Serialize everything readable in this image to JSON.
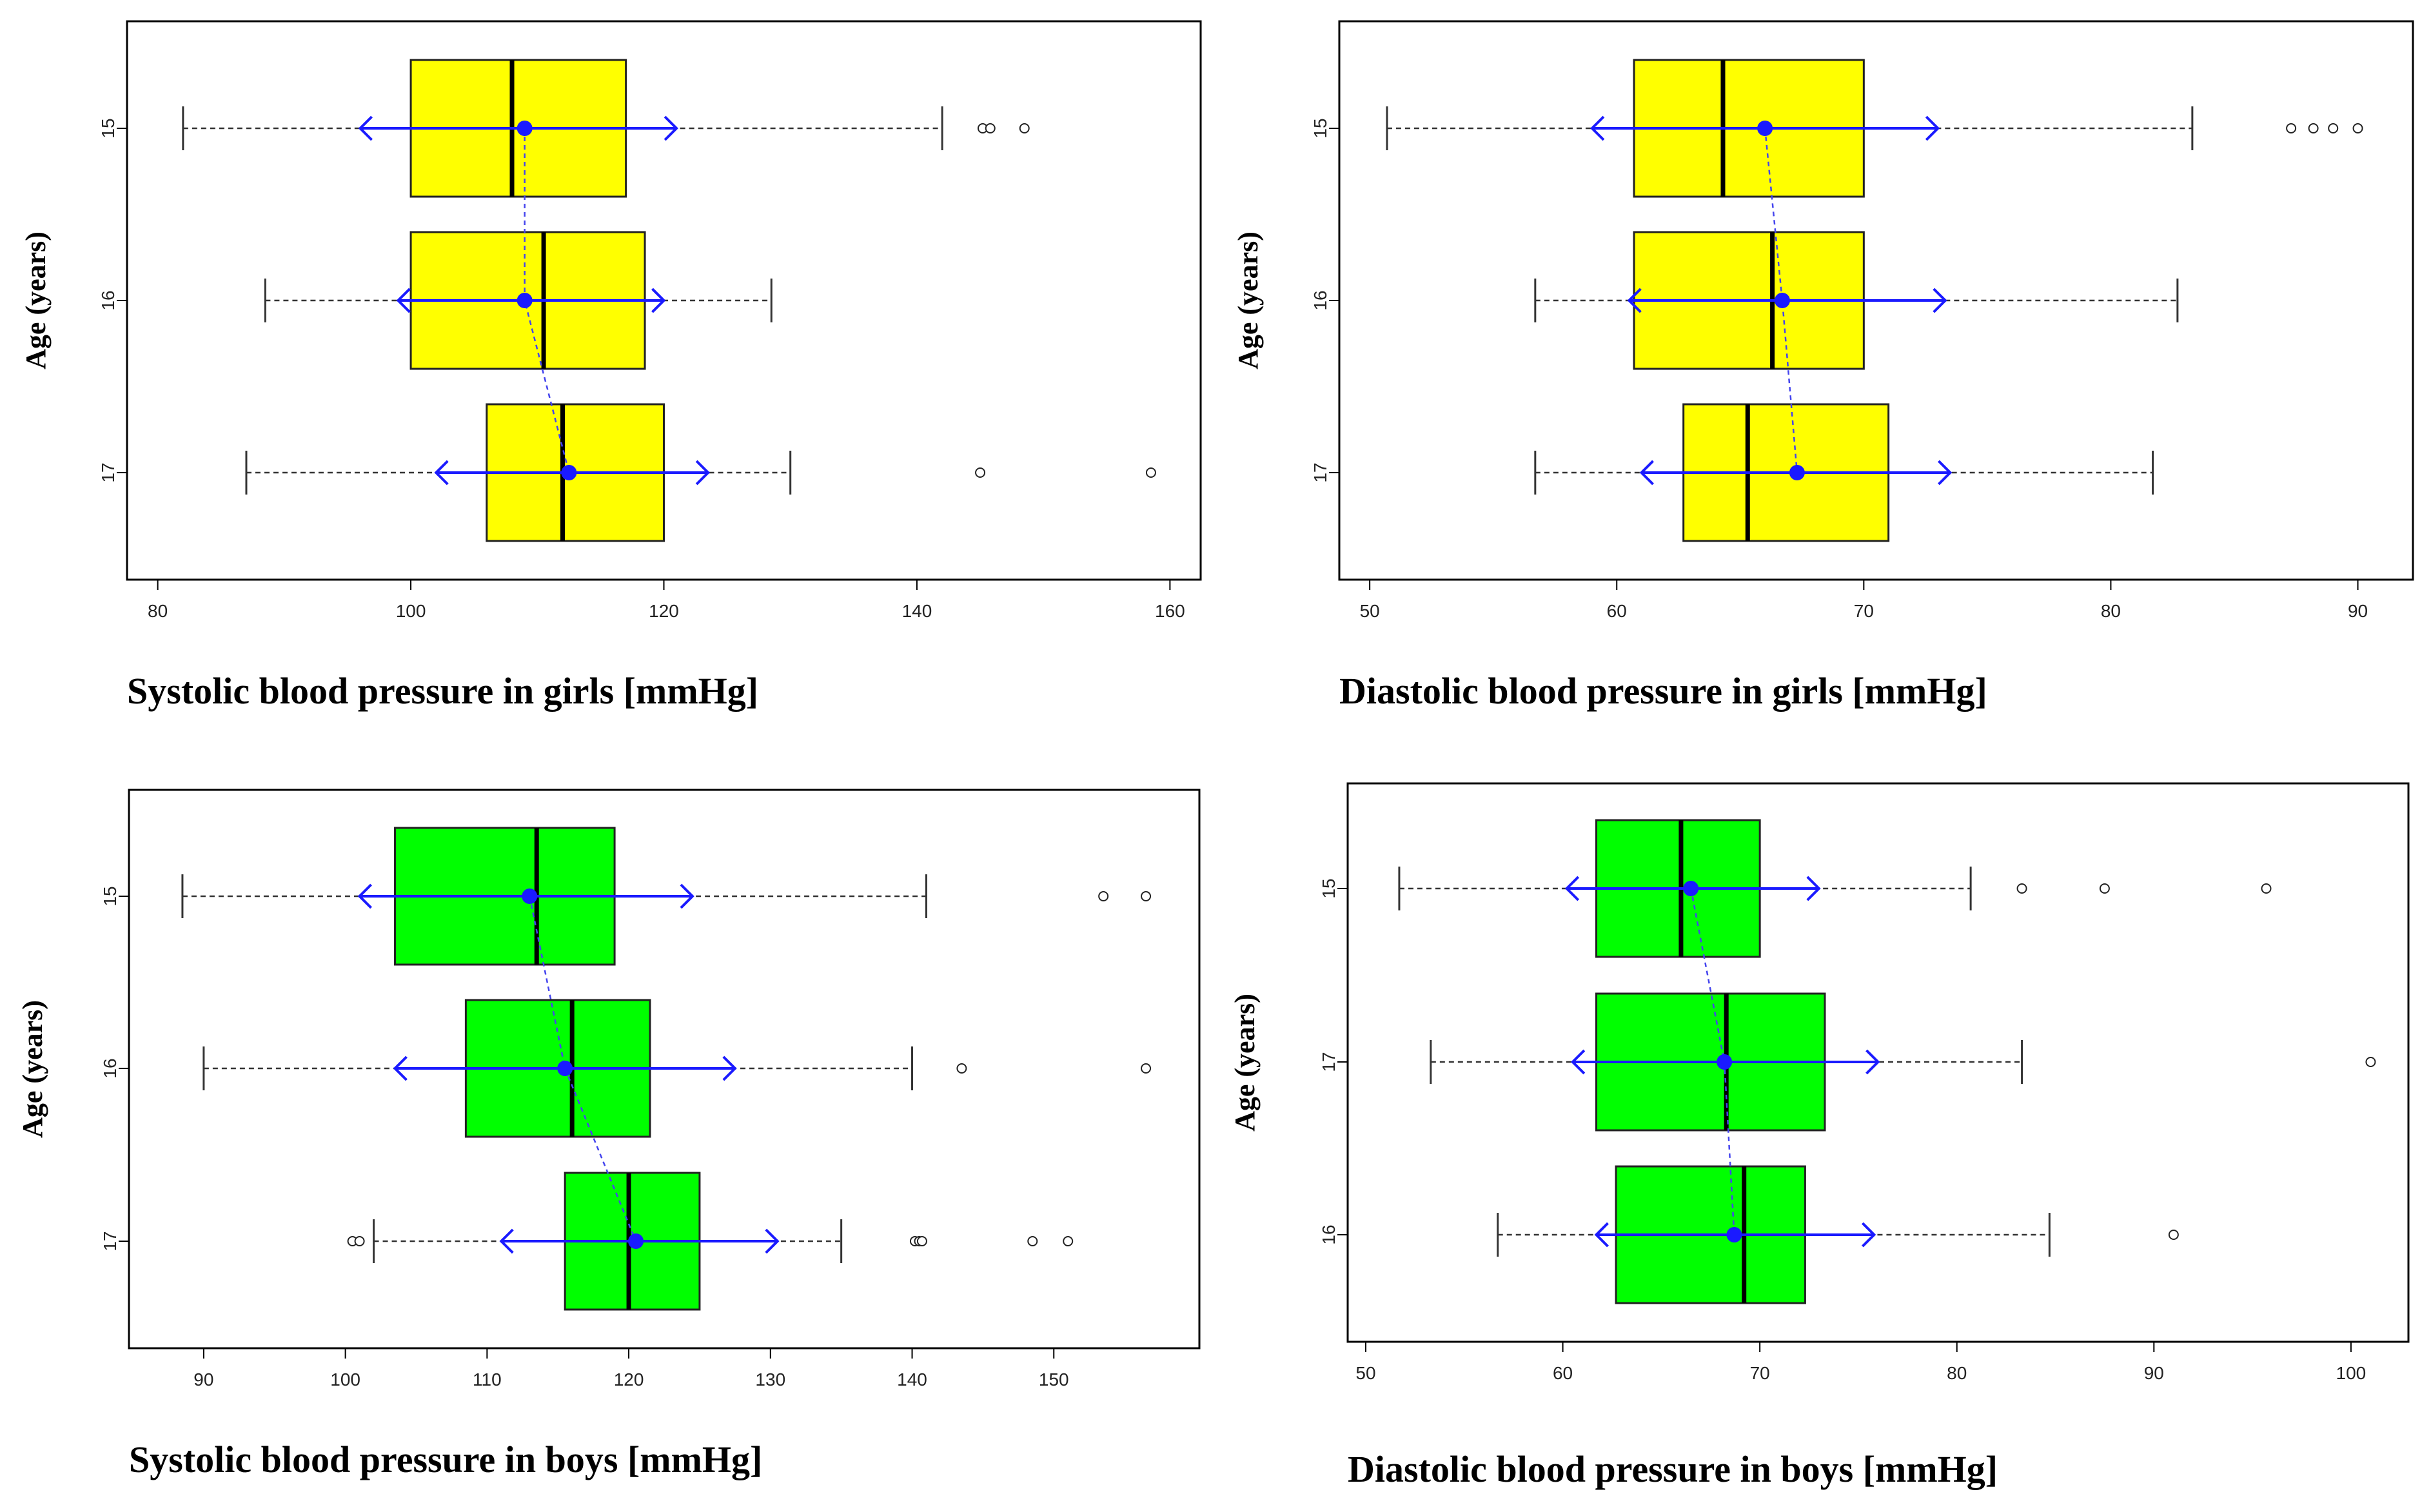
{
  "chart_data": [
    {
      "type": "boxplot",
      "title": "",
      "xlabel": "Systolic blood pressure in girls [mmHg]",
      "ylabel": "Age (years)",
      "xlim": [
        79,
        161
      ],
      "xticks": [
        80,
        100,
        120,
        140,
        160
      ],
      "box_color": "#ffff00",
      "categories": [
        "15",
        "16",
        "17"
      ],
      "boxes": [
        {
          "label": "15",
          "whisker_low": 82,
          "q1": 100,
          "median": 108,
          "q3": 117,
          "whisker_high": 142,
          "mean": 109,
          "sd_low": 96,
          "sd_high": 121,
          "outliers": [
            145.2,
            145.8,
            148.5
          ]
        },
        {
          "label": "16",
          "whisker_low": 88.5,
          "q1": 100,
          "median": 110.5,
          "q3": 118.5,
          "whisker_high": 128.5,
          "mean": 109,
          "sd_low": 99,
          "sd_high": 120,
          "outliers": []
        },
        {
          "label": "17",
          "whisker_low": 87,
          "q1": 106,
          "median": 112,
          "q3": 120,
          "whisker_high": 130,
          "mean": 112.5,
          "sd_low": 102,
          "sd_high": 123.5,
          "outliers": [
            145,
            158.5
          ]
        }
      ]
    },
    {
      "type": "boxplot",
      "title": "",
      "xlabel": "Diastolic blood pressure in girls [mmHg]",
      "ylabel": "Age (years)",
      "xlim": [
        49.5,
        91.5
      ],
      "xticks": [
        50,
        60,
        70,
        80,
        90
      ],
      "box_color": "#ffff00",
      "categories": [
        "15",
        "16",
        "17"
      ],
      "boxes": [
        {
          "label": "15",
          "whisker_low": 50.7,
          "q1": 60.7,
          "median": 64.3,
          "q3": 70,
          "whisker_high": 83.3,
          "mean": 66,
          "sd_low": 59,
          "sd_high": 73,
          "outliers": [
            87.3,
            88.2,
            89,
            90
          ]
        },
        {
          "label": "16",
          "whisker_low": 56.7,
          "q1": 60.7,
          "median": 66.3,
          "q3": 70,
          "whisker_high": 82.7,
          "mean": 66.7,
          "sd_low": 60.5,
          "sd_high": 73.3,
          "outliers": []
        },
        {
          "label": "17",
          "whisker_low": 56.7,
          "q1": 62.7,
          "median": 65.3,
          "q3": 71,
          "whisker_high": 81.7,
          "mean": 67.3,
          "sd_low": 61,
          "sd_high": 73.5,
          "outliers": []
        }
      ]
    },
    {
      "type": "boxplot",
      "title": "",
      "xlabel": "Systolic blood pressure in boys [mmHg]",
      "ylabel": "Age (years)",
      "xlim": [
        86,
        159
      ],
      "xticks": [
        90,
        100,
        110,
        120,
        130,
        140,
        150
      ],
      "box_color": "#00ff00",
      "categories": [
        "15",
        "16",
        "17"
      ],
      "boxes": [
        {
          "label": "15",
          "whisker_low": 88.5,
          "q1": 103.5,
          "median": 113.5,
          "q3": 119,
          "whisker_high": 141,
          "mean": 113,
          "sd_low": 101,
          "sd_high": 124.5,
          "outliers": [
            153.5,
            156.5
          ]
        },
        {
          "label": "16",
          "whisker_low": 90,
          "q1": 108.5,
          "median": 116,
          "q3": 121.5,
          "whisker_high": 140,
          "mean": 115.5,
          "sd_low": 103.5,
          "sd_high": 127.5,
          "outliers": [
            143.5,
            156.5
          ]
        },
        {
          "label": "17",
          "whisker_low": 102,
          "q1": 115.5,
          "median": 120,
          "q3": 125,
          "whisker_high": 135,
          "mean": 120.5,
          "sd_low": 111,
          "sd_high": 130.5,
          "outliers": [
            100.5,
            101,
            140.2,
            140.5,
            140.7,
            148.5,
            151
          ]
        }
      ]
    },
    {
      "type": "boxplot",
      "title": "",
      "xlabel": "Diastolic blood pressure in boys [mmHg]",
      "ylabel": "Age (years)",
      "xlim": [
        50,
        102
      ],
      "xticks": [
        50,
        60,
        70,
        80,
        90,
        100
      ],
      "box_color": "#00ff00",
      "categories": [
        "15",
        "17",
        "16"
      ],
      "boxes": [
        {
          "label": "15",
          "whisker_low": 51.7,
          "q1": 61.7,
          "median": 66,
          "q3": 70,
          "whisker_high": 80.7,
          "mean": 66.5,
          "sd_low": 60.2,
          "sd_high": 73,
          "outliers": [
            83.3,
            87.5,
            95.7
          ]
        },
        {
          "label": "17",
          "whisker_low": 53.3,
          "q1": 61.7,
          "median": 68.3,
          "q3": 73.3,
          "whisker_high": 83.3,
          "mean": 68.2,
          "sd_low": 60.5,
          "sd_high": 76,
          "outliers": [
            101
          ]
        },
        {
          "label": "16",
          "whisker_low": 56.7,
          "q1": 62.7,
          "median": 69.2,
          "q3": 72.3,
          "whisker_high": 84.7,
          "mean": 68.7,
          "sd_low": 61.7,
          "sd_high": 75.8,
          "outliers": [
            91
          ]
        }
      ]
    }
  ]
}
